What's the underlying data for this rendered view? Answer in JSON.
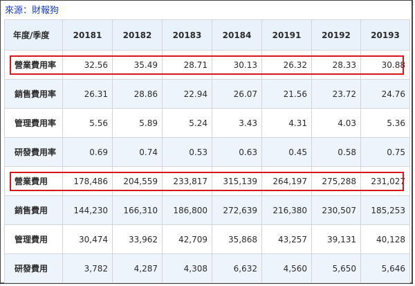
{
  "source": "來源：財報狗",
  "table": {
    "header": [
      "年度/季度",
      "20181",
      "20182",
      "20183",
      "20184",
      "20191",
      "20192",
      "20193"
    ],
    "rows": [
      {
        "label": "營業費用率",
        "values": [
          "32.56",
          "35.49",
          "28.71",
          "30.13",
          "26.32",
          "28.33",
          "30.88"
        ],
        "highlighted": true
      },
      {
        "label": "銷售費用率",
        "values": [
          "26.31",
          "28.86",
          "22.94",
          "26.07",
          "21.56",
          "23.72",
          "24.76"
        ],
        "highlighted": false
      },
      {
        "label": "管理費用率",
        "values": [
          "5.56",
          "5.89",
          "5.24",
          "3.43",
          "4.31",
          "4.03",
          "5.36"
        ],
        "highlighted": false
      },
      {
        "label": "研發費用率",
        "values": [
          "0.69",
          "0.74",
          "0.53",
          "0.63",
          "0.45",
          "0.58",
          "0.75"
        ],
        "highlighted": false
      },
      {
        "label": "營業費用",
        "values": [
          "178,486",
          "204,559",
          "233,817",
          "315,139",
          "264,197",
          "275,288",
          "231,027"
        ],
        "highlighted": true
      },
      {
        "label": "銷售費用",
        "values": [
          "144,230",
          "166,310",
          "186,800",
          "272,639",
          "216,380",
          "230,507",
          "185,253"
        ],
        "highlighted": false
      },
      {
        "label": "管理費用",
        "values": [
          "30,474",
          "33,962",
          "42,709",
          "35,868",
          "43,257",
          "39,131",
          "40,128"
        ],
        "highlighted": false
      },
      {
        "label": "研發費用",
        "values": [
          "3,782",
          "4,287",
          "4,308",
          "6,632",
          "4,560",
          "5,650",
          "5,646"
        ],
        "highlighted": false
      }
    ]
  },
  "colors": {
    "highlight_border": "#d9141b",
    "source_text": "#1a3fcf",
    "header_bg": "#e9f1fb",
    "alt_row_bg": "#eef4fb"
  }
}
